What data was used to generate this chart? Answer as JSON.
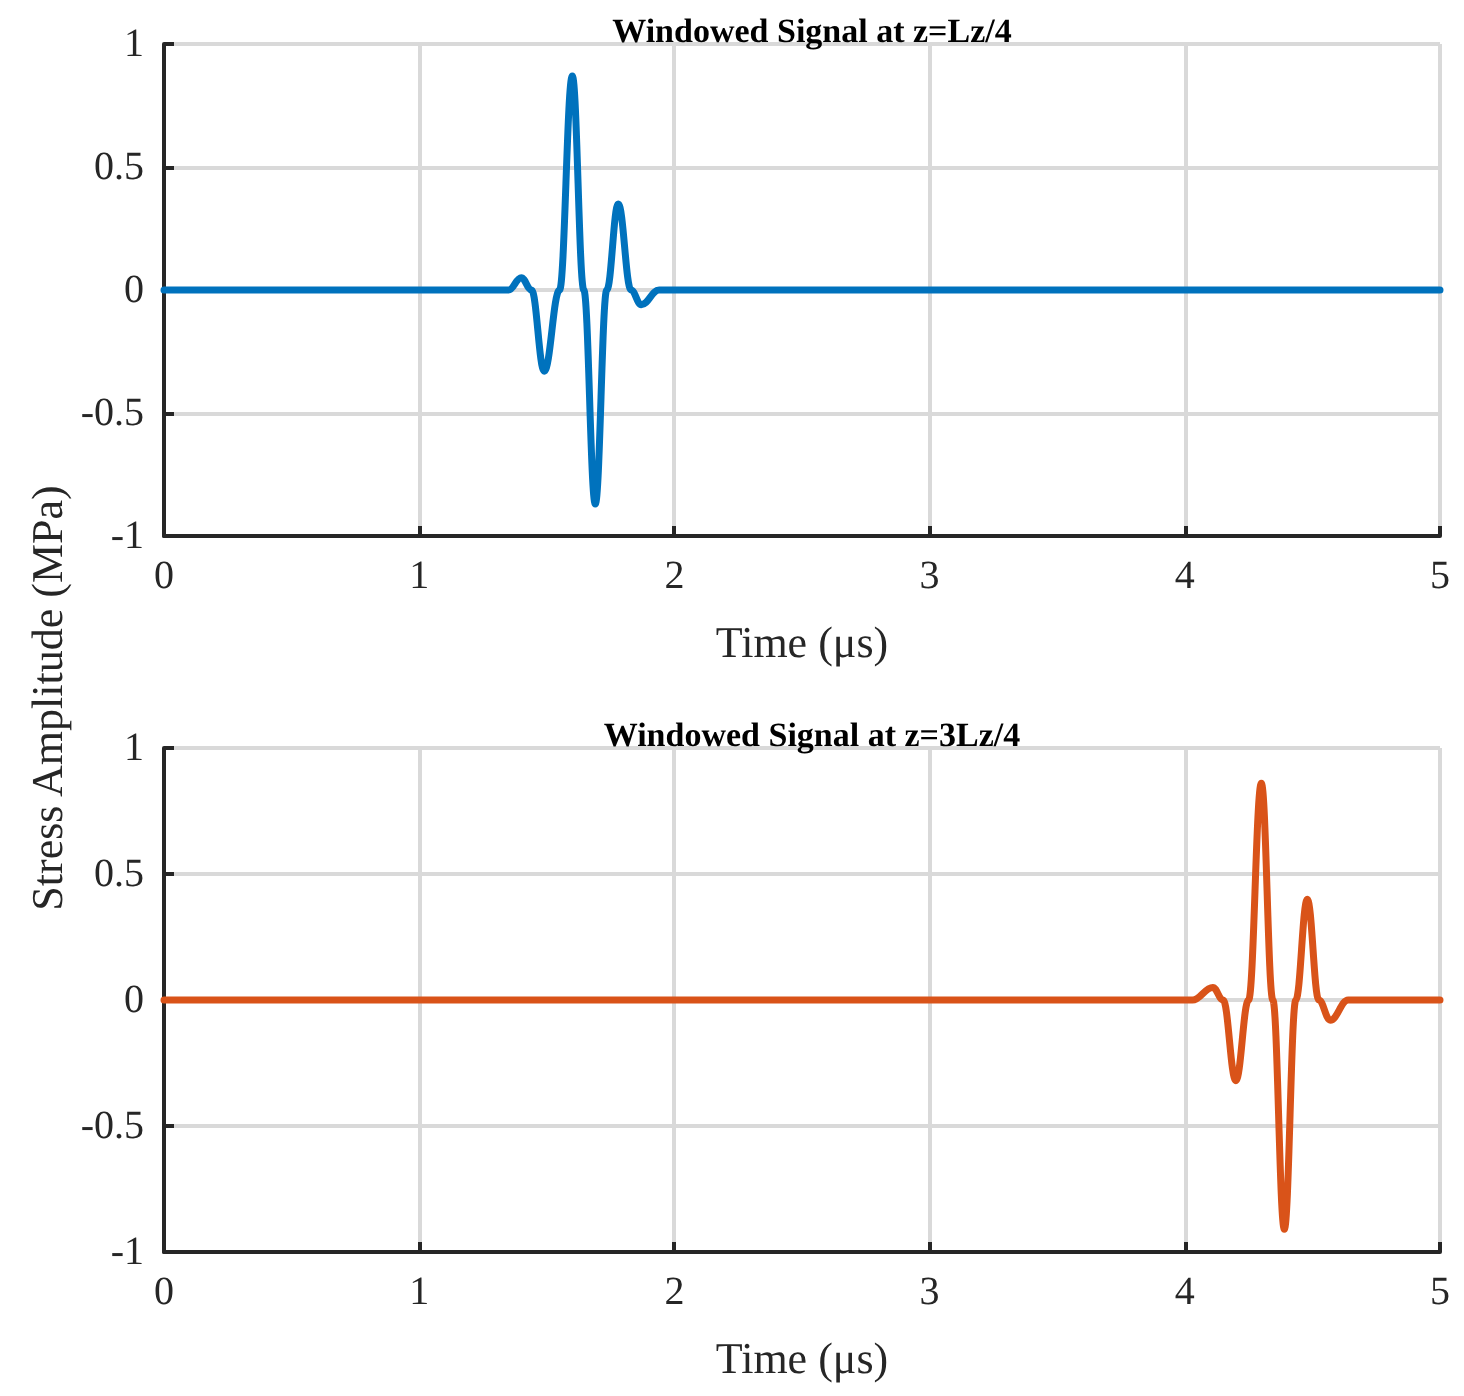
{
  "chart_data": [
    {
      "type": "line",
      "title": "Windowed Signal at z=Lz/4",
      "xlabel": "Time (μs)",
      "ylabel": "Stress Amplitude (MPa)",
      "xlim": [
        0,
        5
      ],
      "xticks": [
        0,
        1,
        2,
        3,
        4,
        5
      ],
      "ylim": [
        -1,
        1
      ],
      "yticks": [
        -1,
        -0.5,
        0,
        0.5,
        1
      ],
      "grid": true,
      "marker": "none",
      "line_style": "solid",
      "series": [
        {
          "color": "#0072bd",
          "x": [
            0,
            1.35,
            1.4,
            1.44,
            1.49,
            1.55,
            1.6,
            1.645,
            1.69,
            1.735,
            1.78,
            1.83,
            1.87,
            1.94,
            5
          ],
          "values": [
            0,
            0,
            0.05,
            0,
            -0.33,
            0,
            0.87,
            0,
            -0.87,
            0,
            0.35,
            0,
            -0.06,
            0,
            0
          ]
        }
      ]
    },
    {
      "type": "line",
      "title": "Windowed Signal at z=3Lz/4",
      "xlabel": "Time (μs)",
      "xlim": [
        0,
        5
      ],
      "xticks": [
        0,
        1,
        2,
        3,
        4,
        5
      ],
      "ylim": [
        -1,
        1
      ],
      "yticks": [
        -1,
        -0.5,
        0,
        0.5,
        1
      ],
      "grid": true,
      "marker": "none",
      "line_style": "solid",
      "series": [
        {
          "color": "#d95319",
          "x": [
            0,
            4.03,
            4.11,
            4.15,
            4.2,
            4.25,
            4.3,
            4.345,
            4.39,
            4.435,
            4.48,
            4.525,
            4.57,
            4.64,
            5
          ],
          "values": [
            0,
            0,
            0.05,
            0,
            -0.32,
            0,
            0.86,
            0,
            -0.91,
            0,
            0.4,
            0,
            -0.08,
            0,
            0
          ]
        }
      ]
    }
  ]
}
